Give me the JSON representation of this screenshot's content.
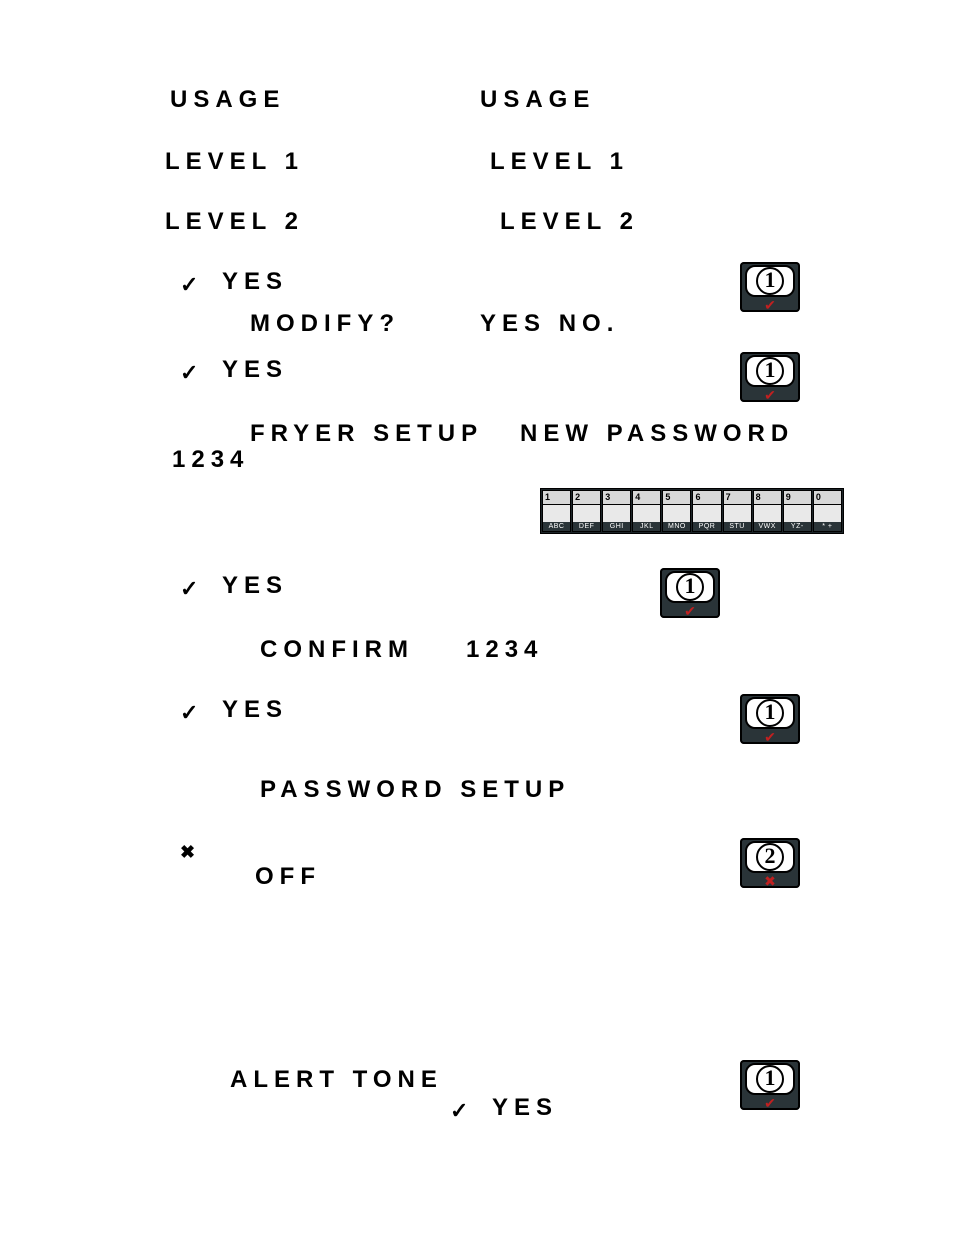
{
  "header": {
    "left_usage": "USAGE",
    "right_usage": "USAGE",
    "left_level1": "LEVEL 1",
    "right_level1": "LEVEL 1",
    "left_level2": "LEVEL 2",
    "right_level2": "LEVEL 2"
  },
  "rows": {
    "r1_yes": "YES",
    "r1_modify": "MODIFY?",
    "r1_yesno": "YES NO.",
    "r2_yes": "YES",
    "r3_fryer": "FRYER SETUP",
    "r3_newpw": "NEW PASSWORD",
    "r3_1234": "1234",
    "r4_yes": "YES",
    "r5_confirm": "CONFIRM",
    "r5_1234": "1234",
    "r6_yes": "YES",
    "r7_pwsetup": "PASSWORD SETUP",
    "r8_off": "OFF",
    "r9_alert": "ALERT TONE",
    "r9_yes": "YES"
  },
  "checkmark": "✓",
  "crossmark": "✖",
  "keypad": {
    "keys": [
      {
        "n": "1",
        "letters": "ABC"
      },
      {
        "n": "2",
        "letters": "DEF"
      },
      {
        "n": "3",
        "letters": "GHI"
      },
      {
        "n": "4",
        "letters": "JKL"
      },
      {
        "n": "5",
        "letters": "MNO"
      },
      {
        "n": "6",
        "letters": "PQR"
      },
      {
        "n": "7",
        "letters": "STU"
      },
      {
        "n": "8",
        "letters": "VWX"
      },
      {
        "n": "9",
        "letters": "YZ-"
      },
      {
        "n": "0",
        "letters": "* +"
      }
    ]
  },
  "buttons": {
    "one": "1",
    "two": "2",
    "ok_mark": "✔",
    "x_mark": "✖"
  },
  "colors": {
    "text": "#000000",
    "btn_bg": "#2a3438",
    "btn_pill": "#ffffff",
    "accent_red": "#c02020",
    "keypad_bg": "#1c2428",
    "key_top": "#d8d8d8"
  }
}
